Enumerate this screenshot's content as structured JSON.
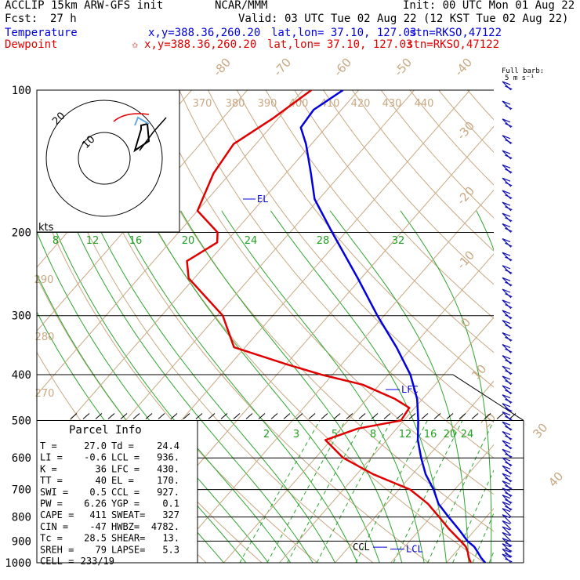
{
  "header": {
    "model": "ACCLIP 15km ARW-GFS init",
    "org": "NCAR/MMM",
    "init": "Init: 00 UTC Mon 01 Aug 22",
    "fcst_label": "Fcst:",
    "fcst_value": "27 h",
    "valid": "Valid: 03 UTC Tue 02 Aug 22 (12 KST Tue 02 Aug 22)"
  },
  "legend": {
    "temperature": {
      "label": "Temperature",
      "xy": "x,y=388.36,260.20",
      "latlon": "lat,lon= 37.10, 127.03",
      "stn": "stn=RKSO,47122",
      "color": "#0000e0"
    },
    "dewpoint": {
      "label": "Dewpoint",
      "marker": "✩",
      "xy": "x,y=388.36,260.20",
      "latlon": "lat,lon= 37.10, 127.03",
      "stn": "stn=RKSO,47122",
      "color": "#e00000"
    }
  },
  "barb_key": {
    "line1": "Full barb:",
    "line2": "5 m s⁻¹"
  },
  "parcel_info": {
    "title": "Parcel Info",
    "rows": [
      {
        "l1": "T   =",
        "v1": "27.0",
        "l2": "Td =",
        "v2": "24.4"
      },
      {
        "l1": "LI  =",
        "v1": "-0.6",
        "l2": "LCL =",
        "v2": "936."
      },
      {
        "l1": "K   =",
        "v1": "36",
        "l2": "LFC =",
        "v2": "430."
      },
      {
        "l1": "TT  =",
        "v1": "40",
        "l2": "EL  =",
        "v2": "170."
      },
      {
        "l1": "SWI =",
        "v1": "0.5",
        "l2": "CCL =",
        "v2": "927."
      },
      {
        "l1": "PW  =",
        "v1": "6.26",
        "l2": "YGP =",
        "v2": "0.1"
      },
      {
        "l1": "CAPE =",
        "v1": "411",
        "l2": "SWEAT=",
        "v2": "327"
      },
      {
        "l1": "CIN  =",
        "v1": "-47",
        "l2": "HWBZ=",
        "v2": "4782."
      },
      {
        "l1": "Tc   =",
        "v1": "28.5",
        "l2": "SHEAR=",
        "v2": "13."
      },
      {
        "l1": "SREH =",
        "v1": "79",
        "l2": "LAPSE=",
        "v2": "5.3"
      },
      {
        "l1": "CELL =",
        "v1": "233/19",
        "l2": "",
        "v2": ""
      }
    ]
  },
  "hodograph": {
    "units": "kts",
    "ring_labels": [
      "20",
      "10"
    ]
  },
  "chart_data": {
    "type": "line",
    "chart_kind": "skew-T log-P sounding",
    "y_axis": {
      "scale": "log",
      "reversed": true,
      "ylim": [
        1000,
        100
      ],
      "tick_labels": [
        "100",
        "200",
        "300",
        "400",
        "500",
        "600",
        "700",
        "800",
        "900",
        "1000"
      ],
      "units": "hPa"
    },
    "isotherm_labels": [
      "-80",
      "-70",
      "-60",
      "-50",
      "-40",
      "-30",
      "-20",
      "-10",
      "0",
      "10",
      "20",
      "30",
      "40"
    ],
    "isotherm_label_values": [
      -80,
      -70,
      -60,
      -50,
      -40,
      -30,
      -20,
      -10,
      0,
      10,
      20,
      30,
      40
    ],
    "theta_labels": [
      "370",
      "380",
      "390",
      "400",
      "410",
      "420",
      "430",
      "440"
    ],
    "theta_label_values": [
      370,
      380,
      390,
      400,
      410,
      420,
      430,
      440
    ],
    "theta_side_labels": [
      "290",
      "280",
      "270"
    ],
    "mixing_ratio_labels": [
      "2",
      "3",
      "5",
      "8",
      "12",
      "16",
      "20",
      "24"
    ],
    "mixing_ratio_values": [
      2,
      3,
      5,
      8,
      12,
      16,
      20,
      24
    ],
    "theta_e_labels": [
      "8",
      "12",
      "16",
      "20",
      "24",
      "28",
      "32"
    ],
    "theta_e_values": [
      8,
      12,
      16,
      20,
      24,
      28,
      32
    ],
    "series": [
      {
        "name": "Temperature",
        "color": "#0000e0",
        "points": [
          [
            1000,
            27.0
          ],
          [
            975,
            25.4
          ],
          [
            950,
            24.0
          ],
          [
            925,
            22.5
          ],
          [
            900,
            20.4
          ],
          [
            850,
            17.0
          ],
          [
            800,
            13.2
          ],
          [
            750,
            9.3
          ],
          [
            700,
            6.2
          ],
          [
            650,
            2.4
          ],
          [
            600,
            -1.0
          ],
          [
            550,
            -4.4
          ],
          [
            500,
            -7.4
          ],
          [
            450,
            -11.0
          ],
          [
            400,
            -16.0
          ],
          [
            350,
            -22.8
          ],
          [
            300,
            -31.2
          ],
          [
            250,
            -40.6
          ],
          [
            200,
            -52.4
          ],
          [
            170,
            -60.8
          ],
          [
            150,
            -65.5
          ],
          [
            130,
            -71.0
          ],
          [
            120,
            -74.5
          ],
          [
            110,
            -75.0
          ],
          [
            100,
            -72.8
          ]
        ]
      },
      {
        "name": "Dewpoint",
        "color": "#e00000",
        "points": [
          [
            1000,
            24.4
          ],
          [
            975,
            23.2
          ],
          [
            950,
            22.2
          ],
          [
            925,
            21.0
          ],
          [
            900,
            19.2
          ],
          [
            850,
            15.3
          ],
          [
            800,
            11.5
          ],
          [
            750,
            7.4
          ],
          [
            700,
            2.0
          ],
          [
            650,
            -7.0
          ],
          [
            600,
            -15.0
          ],
          [
            550,
            -21.0
          ],
          [
            520,
            -17.0
          ],
          [
            500,
            -10.5
          ],
          [
            470,
            -11.0
          ],
          [
            450,
            -15.0
          ],
          [
            420,
            -23.0
          ],
          [
            400,
            -32.0
          ],
          [
            380,
            -40.0
          ],
          [
            350,
            -52.0
          ],
          [
            300,
            -59.0
          ],
          [
            250,
            -71.0
          ],
          [
            230,
            -74.0
          ],
          [
            210,
            -71.5
          ],
          [
            200,
            -73.0
          ],
          [
            180,
            -80.0
          ],
          [
            150,
            -83.0
          ],
          [
            130,
            -84.0
          ],
          [
            115,
            -81.0
          ],
          [
            100,
            -78.5
          ]
        ]
      }
    ],
    "parcel_levels": [
      {
        "label": "EL",
        "p": 170
      },
      {
        "label": "LFC",
        "p": 430
      },
      {
        "label": "CCL",
        "p": 927
      },
      {
        "label": "LCL",
        "p": 936
      }
    ],
    "wind_levels_hpa": [
      100,
      110,
      120,
      130,
      140,
      150,
      160,
      170,
      180,
      190,
      200,
      215,
      230,
      245,
      260,
      275,
      290,
      305,
      320,
      340,
      360,
      380,
      400,
      420,
      440,
      460,
      480,
      500,
      525,
      550,
      575,
      600,
      625,
      650,
      675,
      700,
      725,
      750,
      775,
      800,
      825,
      850,
      875,
      900,
      925,
      950,
      975,
      1000
    ]
  }
}
